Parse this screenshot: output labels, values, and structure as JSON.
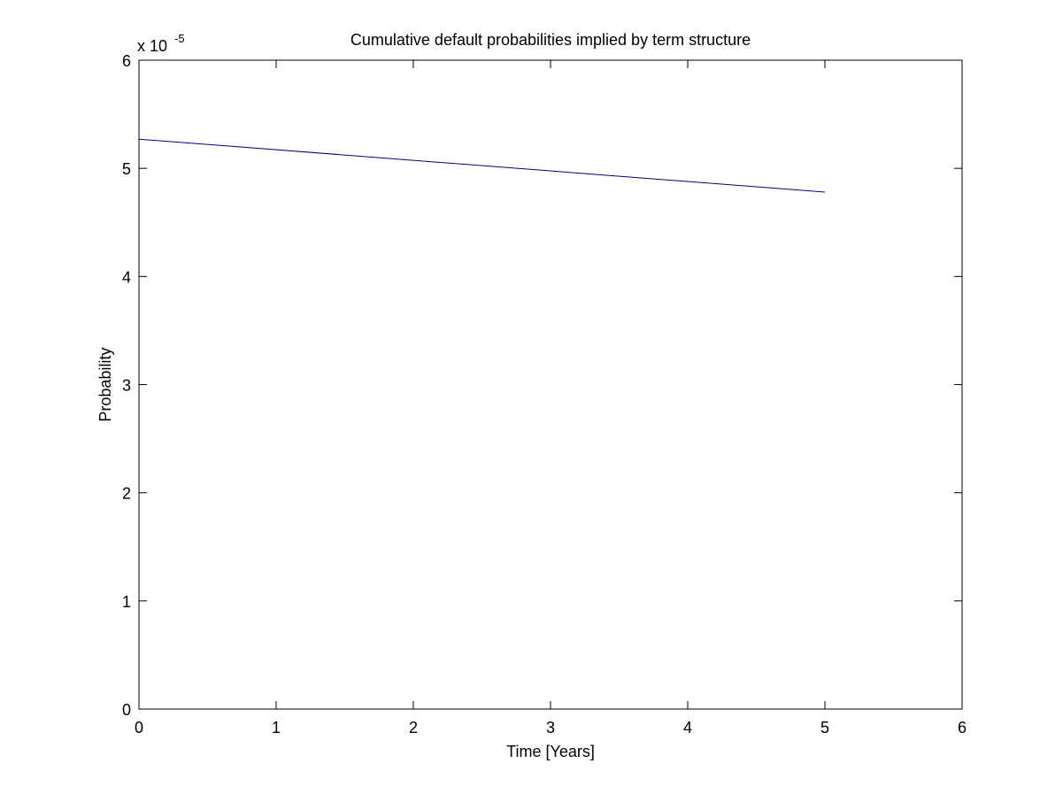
{
  "chart_data": {
    "type": "line",
    "title": "Cumulative default probabilities implied by term structure",
    "xlabel": "Time [Years]",
    "ylabel": "Probability",
    "xlim": [
      0,
      6
    ],
    "ylim": [
      0,
      6
    ],
    "x_ticks": [
      "0",
      "1",
      "2",
      "3",
      "4",
      "5",
      "6"
    ],
    "y_ticks": [
      "0",
      "1",
      "2",
      "3",
      "4",
      "5",
      "6"
    ],
    "y_multiplier": {
      "base": "x 10",
      "exponent": "-5"
    },
    "grid": false,
    "legend": "none",
    "series": [
      {
        "color": "#00007f",
        "x": [
          0,
          5
        ],
        "y": [
          5.27,
          4.78
        ]
      }
    ]
  }
}
